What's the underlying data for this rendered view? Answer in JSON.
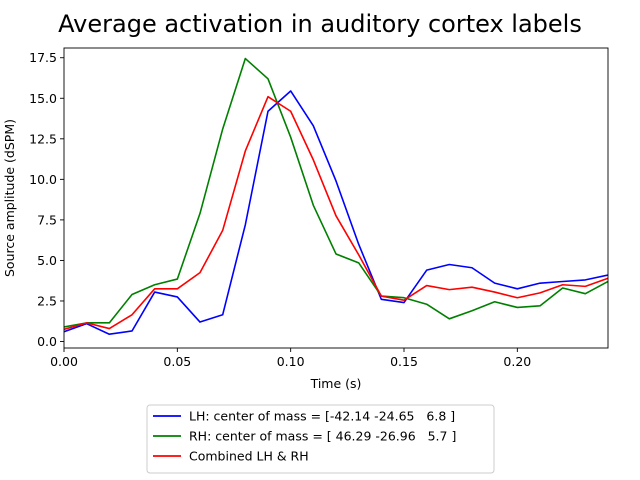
{
  "chart_data": {
    "type": "line",
    "title": "Average activation in auditory cortex labels",
    "xlabel": "Time (s)",
    "ylabel": "Source amplitude (dSPM)",
    "xlim": [
      0.0,
      0.24
    ],
    "ylim": [
      -0.4,
      18.1
    ],
    "xticks": [
      0.0,
      0.05,
      0.1,
      0.15,
      0.2
    ],
    "xtick_labels": [
      "0.00",
      "0.05",
      "0.10",
      "0.15",
      "0.20"
    ],
    "yticks": [
      0.0,
      2.5,
      5.0,
      7.5,
      10.0,
      12.5,
      15.0,
      17.5
    ],
    "ytick_labels": [
      "0.0",
      "2.5",
      "5.0",
      "7.5",
      "10.0",
      "12.5",
      "15.0",
      "17.5"
    ],
    "grid": false,
    "legend_position": "below plot",
    "x": [
      0.0,
      0.01,
      0.02,
      0.03,
      0.04,
      0.05,
      0.06,
      0.07,
      0.08,
      0.09,
      0.1,
      0.11,
      0.12,
      0.13,
      0.14,
      0.15,
      0.16,
      0.17,
      0.18,
      0.19,
      0.2,
      0.21,
      0.22,
      0.23,
      0.24
    ],
    "series": [
      {
        "name": "LH: center of mass = [-42.14 -24.65   6.8 ]",
        "color": "#0000ff",
        "values": [
          0.6,
          1.1,
          0.45,
          0.65,
          3.05,
          2.75,
          1.2,
          1.65,
          7.2,
          14.2,
          15.45,
          13.3,
          9.9,
          6.0,
          2.6,
          2.4,
          4.4,
          4.75,
          4.55,
          3.6,
          3.25,
          3.6,
          3.7,
          3.8,
          4.1
        ]
      },
      {
        "name": "RH: center of mass = [ 46.29 -26.96   5.7 ]",
        "color": "#008000",
        "values": [
          0.9,
          1.15,
          1.15,
          2.9,
          3.5,
          3.85,
          7.9,
          13.1,
          17.45,
          16.2,
          12.6,
          8.4,
          5.4,
          4.85,
          2.8,
          2.7,
          2.3,
          1.4,
          1.9,
          2.45,
          2.1,
          2.2,
          3.3,
          2.95,
          3.7
        ]
      },
      {
        "name": "Combined LH & RH",
        "color": "#ff0000",
        "values": [
          0.75,
          1.15,
          0.8,
          1.65,
          3.25,
          3.25,
          4.25,
          6.85,
          11.75,
          15.1,
          14.2,
          11.2,
          7.75,
          5.35,
          2.8,
          2.55,
          3.45,
          3.2,
          3.35,
          3.05,
          2.7,
          3.0,
          3.5,
          3.4,
          3.9
        ]
      }
    ]
  }
}
